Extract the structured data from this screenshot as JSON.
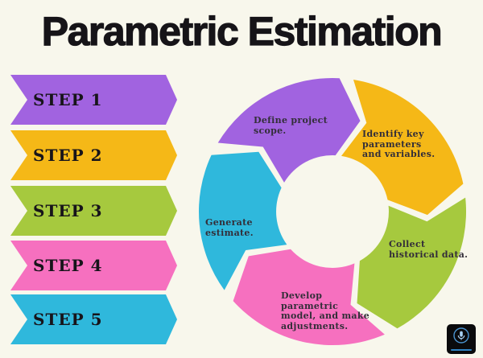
{
  "title": "Parametric Estimation",
  "steps": [
    {
      "label": "STEP 1",
      "color": "#a163e0"
    },
    {
      "label": "STEP 2",
      "color": "#f5b817"
    },
    {
      "label": "STEP 3",
      "color": "#a6c93e"
    },
    {
      "label": "STEP 4",
      "color": "#f670bf"
    },
    {
      "label": "STEP 5",
      "color": "#2fb8dc"
    }
  ],
  "cycle": {
    "segments": [
      {
        "name": "define-project-scope",
        "color": "#a163e0",
        "label": "Define project scope.",
        "lines": [
          "Define project",
          "scope."
        ]
      },
      {
        "name": "identify-key-parameters",
        "color": "#f5b817",
        "label": "Identify key parameters and variables.",
        "lines": [
          "Identify key",
          "parameters",
          "and variables."
        ]
      },
      {
        "name": "collect-historical-data",
        "color": "#a6c93e",
        "label": "Collect historical data.",
        "lines": [
          "Collect",
          "historical data."
        ]
      },
      {
        "name": "develop-parametric-model",
        "color": "#f670bf",
        "label": "Develop parametric model, and make adjustments.",
        "lines": [
          "Develop",
          "parametric",
          "model, and make",
          "adjustments."
        ]
      },
      {
        "name": "generate-estimate",
        "color": "#2fb8dc",
        "label": "Generate estimate.",
        "lines": [
          "Generate",
          "estimate."
        ]
      }
    ]
  },
  "colors": {
    "background": "#f8f7ec",
    "title_text": "#161418",
    "segment_label_text": "#332e39",
    "logo_background": "#0a0a0c",
    "logo_accent": "#2f82c3"
  }
}
